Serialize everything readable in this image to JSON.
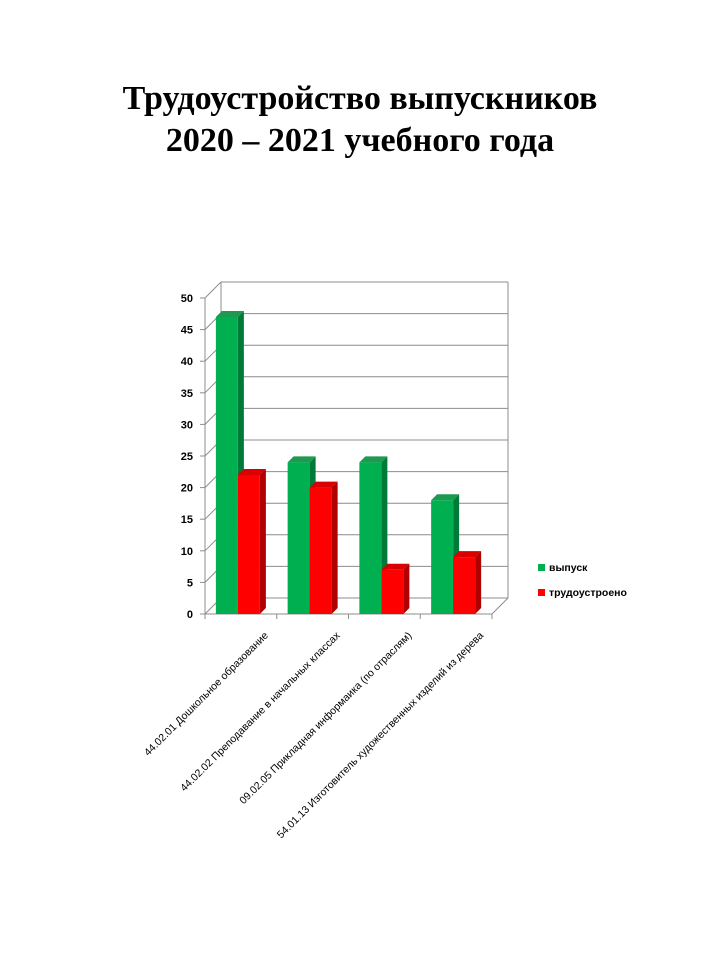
{
  "page": {
    "title_line1": "Трудоустройство  выпускников",
    "title_line2": "2020 – 2021 учебного  года"
  },
  "chart_data": {
    "type": "bar",
    "style": "3d-clustered-column",
    "categories": [
      "44.02.01 Дошкольное образование",
      "44.02.02 Преподавание в начальных классах",
      "09.02.05 Прикладная информаика  (по отраслям)",
      "54.01.13 Изготовитель художественных изделий из дерева"
    ],
    "series": [
      {
        "name": "выпуск",
        "values": [
          47,
          24,
          24,
          18
        ],
        "color": "#00b050",
        "side_color": "#007a38",
        "top_color": "#1e9a50"
      },
      {
        "name": "трудоустроено",
        "values": [
          22,
          20,
          7,
          9
        ],
        "color": "#ff0000",
        "side_color": "#b00000",
        "top_color": "#d80000"
      }
    ],
    "ylim": [
      0,
      50
    ],
    "yticks": [
      "0",
      "5",
      "10",
      "15",
      "20",
      "25",
      "30",
      "35",
      "40",
      "45",
      "50"
    ],
    "grid": true,
    "legend": "right",
    "title": "",
    "xlabel": "",
    "ylabel": ""
  }
}
